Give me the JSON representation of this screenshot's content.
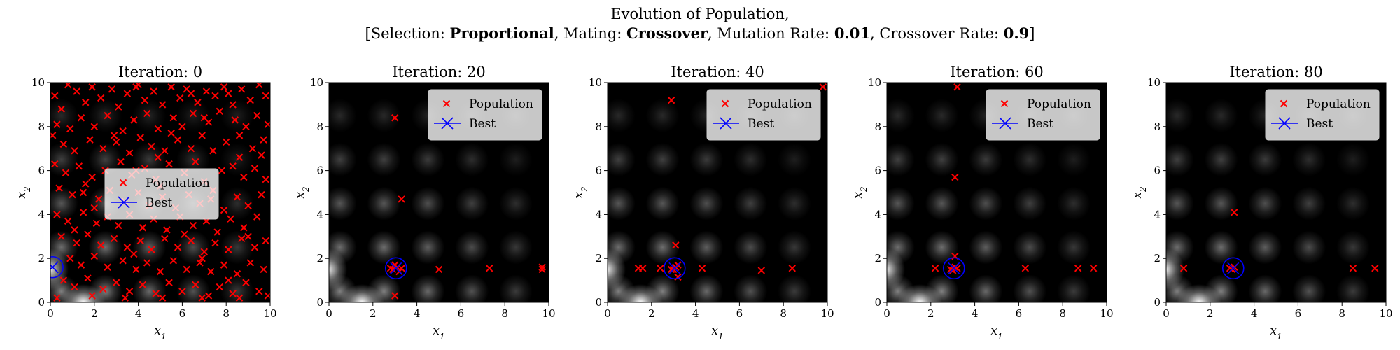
{
  "figure": {
    "title_line1": "Evolution of Population,",
    "title_line2": {
      "prefix": "[Selection: ",
      "selection": "Proportional",
      "mating_label": ", Mating: ",
      "mating": "Crossover",
      "mutation_label": ", Mutation Rate: ",
      "mutation_rate": "0.01",
      "crossover_label": ", Crossover Rate: ",
      "crossover_rate": "0.9",
      "suffix": "]"
    }
  },
  "colors": {
    "population": "#ff0000",
    "best": "#0000ff",
    "background": "#000000"
  },
  "chart_data": [
    {
      "type": "scatter",
      "title": "Iteration: 0",
      "xlabel": "x",
      "ylabel": "x",
      "xlim": [
        0,
        10
      ],
      "ylim": [
        0,
        10
      ],
      "xticks": [
        "0",
        "2",
        "4",
        "6",
        "8",
        "10"
      ],
      "yticks": [
        "0",
        "2",
        "4",
        "6",
        "8",
        "10"
      ],
      "legend": {
        "position": "center",
        "entries": [
          "Population",
          "Best"
        ]
      },
      "best": [
        0.1,
        1.6
      ],
      "population": [
        [
          0.2,
          9.4
        ],
        [
          0.5,
          8.8
        ],
        [
          0.8,
          9.9
        ],
        [
          1.2,
          9.6
        ],
        [
          1.6,
          9.1
        ],
        [
          1.9,
          9.8
        ],
        [
          2.3,
          9.3
        ],
        [
          2.8,
          9.7
        ],
        [
          3.1,
          8.9
        ],
        [
          3.5,
          9.5
        ],
        [
          3.9,
          9.8
        ],
        [
          4.3,
          9.2
        ],
        [
          4.7,
          9.6
        ],
        [
          5.1,
          9.0
        ],
        [
          5.5,
          9.8
        ],
        [
          5.9,
          9.3
        ],
        [
          6.2,
          9.7
        ],
        [
          6.7,
          9.1
        ],
        [
          7.1,
          9.6
        ],
        [
          7.5,
          9.4
        ],
        [
          7.9,
          9.8
        ],
        [
          8.3,
          9.0
        ],
        [
          8.7,
          9.7
        ],
        [
          9.1,
          9.2
        ],
        [
          9.5,
          9.9
        ],
        [
          9.8,
          9.4
        ],
        [
          0.3,
          8.1
        ],
        [
          0.9,
          7.9
        ],
        [
          1.4,
          8.4
        ],
        [
          2.0,
          8.0
        ],
        [
          2.6,
          8.5
        ],
        [
          3.3,
          7.8
        ],
        [
          3.8,
          8.3
        ],
        [
          4.4,
          8.6
        ],
        [
          4.9,
          7.9
        ],
        [
          5.6,
          8.4
        ],
        [
          6.0,
          8.0
        ],
        [
          6.5,
          8.6
        ],
        [
          7.2,
          8.2
        ],
        [
          7.7,
          8.7
        ],
        [
          8.4,
          8.3
        ],
        [
          8.9,
          8.0
        ],
        [
          9.4,
          8.5
        ],
        [
          9.9,
          8.1
        ],
        [
          0.6,
          7.2
        ],
        [
          1.1,
          6.9
        ],
        [
          1.8,
          7.4
        ],
        [
          2.4,
          7.0
        ],
        [
          3.0,
          7.3
        ],
        [
          3.6,
          6.8
        ],
        [
          4.1,
          7.5
        ],
        [
          4.6,
          7.1
        ],
        [
          5.2,
          6.9
        ],
        [
          5.8,
          7.4
        ],
        [
          6.4,
          7.0
        ],
        [
          6.9,
          7.6
        ],
        [
          7.4,
          6.9
        ],
        [
          8.0,
          7.3
        ],
        [
          8.6,
          7.6
        ],
        [
          9.2,
          7.0
        ],
        [
          9.7,
          7.4
        ],
        [
          0.2,
          6.3
        ],
        [
          0.7,
          5.9
        ],
        [
          1.3,
          6.2
        ],
        [
          1.9,
          5.7
        ],
        [
          2.5,
          6.0
        ],
        [
          3.2,
          6.4
        ],
        [
          3.7,
          5.8
        ],
        [
          4.3,
          6.1
        ],
        [
          4.8,
          5.6
        ],
        [
          5.4,
          6.3
        ],
        [
          6.1,
          5.9
        ],
        [
          6.6,
          6.4
        ],
        [
          7.0,
          5.5
        ],
        [
          7.8,
          6.0
        ],
        [
          8.3,
          6.2
        ],
        [
          8.8,
          5.7
        ],
        [
          9.3,
          6.1
        ],
        [
          9.8,
          5.6
        ],
        [
          0.4,
          5.2
        ],
        [
          1.0,
          4.9
        ],
        [
          1.6,
          5.4
        ],
        [
          2.2,
          4.7
        ],
        [
          2.7,
          5.1
        ],
        [
          3.4,
          4.6
        ],
        [
          4.0,
          5.0
        ],
        [
          4.5,
          4.4
        ],
        [
          5.1,
          4.8
        ],
        [
          5.7,
          4.3
        ],
        [
          6.3,
          4.9
        ],
        [
          6.8,
          4.5
        ],
        [
          7.3,
          4.7
        ],
        [
          7.9,
          4.2
        ],
        [
          8.5,
          4.8
        ],
        [
          9.0,
          4.4
        ],
        [
          9.6,
          4.9
        ],
        [
          0.3,
          4.0
        ],
        [
          0.8,
          3.7
        ],
        [
          1.5,
          4.1
        ],
        [
          2.1,
          3.6
        ],
        [
          2.6,
          3.9
        ],
        [
          3.1,
          3.5
        ],
        [
          3.6,
          4.0
        ],
        [
          4.2,
          3.4
        ],
        [
          4.7,
          3.8
        ],
        [
          5.3,
          3.3
        ],
        [
          5.9,
          3.9
        ],
        [
          6.5,
          3.5
        ],
        [
          7.1,
          3.7
        ],
        [
          7.6,
          3.2
        ],
        [
          8.2,
          3.8
        ],
        [
          8.8,
          3.4
        ],
        [
          9.4,
          3.9
        ],
        [
          0.5,
          3.0
        ],
        [
          1.2,
          2.7
        ],
        [
          1.7,
          3.1
        ],
        [
          2.3,
          2.6
        ],
        [
          2.9,
          2.9
        ],
        [
          3.5,
          2.5
        ],
        [
          4.1,
          2.8
        ],
        [
          4.6,
          2.4
        ],
        [
          5.2,
          2.9
        ],
        [
          5.8,
          2.5
        ],
        [
          6.4,
          2.8
        ],
        [
          7.0,
          2.3
        ],
        [
          7.5,
          2.7
        ],
        [
          8.1,
          2.4
        ],
        [
          8.7,
          2.9
        ],
        [
          9.3,
          2.5
        ],
        [
          9.8,
          2.8
        ],
        [
          0.9,
          2.0
        ],
        [
          1.4,
          1.7
        ],
        [
          2.0,
          2.1
        ],
        [
          2.6,
          1.6
        ],
        [
          3.3,
          1.9
        ],
        [
          3.9,
          1.5
        ],
        [
          4.4,
          1.8
        ],
        [
          5.0,
          1.4
        ],
        [
          5.6,
          1.9
        ],
        [
          6.2,
          1.5
        ],
        [
          6.8,
          1.8
        ],
        [
          7.3,
          1.4
        ],
        [
          7.9,
          1.7
        ],
        [
          8.5,
          1.3
        ],
        [
          9.1,
          1.8
        ],
        [
          9.7,
          1.5
        ],
        [
          0.6,
          1.0
        ],
        [
          1.1,
          0.7
        ],
        [
          1.7,
          1.1
        ],
        [
          2.4,
          0.6
        ],
        [
          3.0,
          0.9
        ],
        [
          3.6,
          0.5
        ],
        [
          4.2,
          0.8
        ],
        [
          4.8,
          0.4
        ],
        [
          5.4,
          0.9
        ],
        [
          6.0,
          0.5
        ],
        [
          6.6,
          0.8
        ],
        [
          7.2,
          0.3
        ],
        [
          7.7,
          0.7
        ],
        [
          8.3,
          0.4
        ],
        [
          8.9,
          0.9
        ],
        [
          9.5,
          0.5
        ],
        [
          0.3,
          0.2
        ],
        [
          1.9,
          0.3
        ],
        [
          3.4,
          0.2
        ],
        [
          5.1,
          0.2
        ],
        [
          6.9,
          0.2
        ],
        [
          8.6,
          0.2
        ],
        [
          9.9,
          0.3
        ],
        [
          4.0,
          9.9
        ],
        [
          6.4,
          9.5
        ],
        [
          8.1,
          9.5
        ],
        [
          1.5,
          5.0
        ],
        [
          2.9,
          7.6
        ],
        [
          5.0,
          5.3
        ],
        [
          6.1,
          3.1
        ],
        [
          7.4,
          5.1
        ],
        [
          8.6,
          6.6
        ],
        [
          2.0,
          4.3
        ],
        [
          3.8,
          2.2
        ],
        [
          4.9,
          6.6
        ],
        [
          7.0,
          8.4
        ],
        [
          9.0,
          3.0
        ],
        [
          0.1,
          7.6
        ],
        [
          1.1,
          3.3
        ],
        [
          3.9,
          6.0
        ],
        [
          5.5,
          7.7
        ],
        [
          6.9,
          2.0
        ],
        [
          8.1,
          1.0
        ],
        [
          9.6,
          6.7
        ]
      ]
    },
    {
      "type": "scatter",
      "title": "Iteration: 20",
      "xlabel": "x",
      "ylabel": "x",
      "xlim": [
        0,
        10
      ],
      "ylim": [
        0,
        10
      ],
      "xticks": [
        "0",
        "2",
        "4",
        "6",
        "8",
        "10"
      ],
      "yticks": [
        "0",
        "2",
        "4",
        "6",
        "8",
        "10"
      ],
      "legend": {
        "position": "top-right",
        "entries": [
          "Population",
          "Best"
        ]
      },
      "best": [
        3.05,
        1.55
      ],
      "population": [
        [
          3.0,
          8.4
        ],
        [
          3.3,
          4.7
        ],
        [
          3.0,
          0.3
        ],
        [
          5.0,
          1.5
        ],
        [
          7.3,
          1.55
        ],
        [
          9.7,
          1.5
        ],
        [
          9.7,
          1.6
        ],
        [
          2.9,
          1.5
        ],
        [
          3.1,
          1.6
        ],
        [
          3.2,
          1.4
        ],
        [
          3.0,
          1.7
        ],
        [
          2.8,
          1.55
        ],
        [
          3.3,
          1.55
        ]
      ]
    },
    {
      "type": "scatter",
      "title": "Iteration: 40",
      "xlabel": "x",
      "ylabel": "x",
      "xlim": [
        0,
        10
      ],
      "ylim": [
        0,
        10
      ],
      "xticks": [
        "0",
        "2",
        "4",
        "6",
        "8",
        "10"
      ],
      "yticks": [
        "0",
        "2",
        "4",
        "6",
        "8",
        "10"
      ],
      "legend": {
        "position": "top-right",
        "entries": [
          "Population",
          "Best"
        ]
      },
      "best": [
        3.05,
        1.55
      ],
      "population": [
        [
          2.9,
          9.2
        ],
        [
          9.8,
          9.8
        ],
        [
          3.1,
          2.6
        ],
        [
          1.4,
          1.55
        ],
        [
          1.6,
          1.55
        ],
        [
          2.4,
          1.55
        ],
        [
          4.3,
          1.55
        ],
        [
          7.0,
          1.45
        ],
        [
          8.4,
          1.55
        ],
        [
          3.2,
          1.15
        ],
        [
          2.9,
          1.5
        ],
        [
          3.1,
          1.6
        ],
        [
          3.0,
          1.5
        ],
        [
          3.2,
          1.7
        ]
      ]
    },
    {
      "type": "scatter",
      "title": "Iteration: 60",
      "xlabel": "x",
      "ylabel": "x",
      "xlim": [
        0,
        10
      ],
      "ylim": [
        0,
        10
      ],
      "xticks": [
        "0",
        "2",
        "4",
        "6",
        "8",
        "10"
      ],
      "yticks": [
        "0",
        "2",
        "4",
        "6",
        "8",
        "10"
      ],
      "legend": {
        "position": "top-right",
        "entries": [
          "Population",
          "Best"
        ]
      },
      "best": [
        3.05,
        1.55
      ],
      "population": [
        [
          3.2,
          9.8
        ],
        [
          3.1,
          5.7
        ],
        [
          2.2,
          1.55
        ],
        [
          6.3,
          1.55
        ],
        [
          8.7,
          1.55
        ],
        [
          9.4,
          1.55
        ],
        [
          3.1,
          2.1
        ],
        [
          2.9,
          1.5
        ],
        [
          3.1,
          1.6
        ],
        [
          3.0,
          1.45
        ],
        [
          3.2,
          1.55
        ]
      ]
    },
    {
      "type": "scatter",
      "title": "Iteration: 80",
      "xlabel": "x",
      "ylabel": "x",
      "xlim": [
        0,
        10
      ],
      "ylim": [
        0,
        10
      ],
      "xticks": [
        "0",
        "2",
        "4",
        "6",
        "8",
        "10"
      ],
      "yticks": [
        "0",
        "2",
        "4",
        "6",
        "8",
        "10"
      ],
      "legend": {
        "position": "top-right",
        "entries": [
          "Population",
          "Best"
        ]
      },
      "best": [
        3.05,
        1.55
      ],
      "population": [
        [
          3.1,
          4.1
        ],
        [
          0.8,
          1.55
        ],
        [
          8.5,
          1.55
        ],
        [
          9.5,
          1.55
        ],
        [
          3.0,
          1.5
        ],
        [
          3.1,
          1.6
        ],
        [
          2.9,
          1.55
        ]
      ]
    }
  ]
}
